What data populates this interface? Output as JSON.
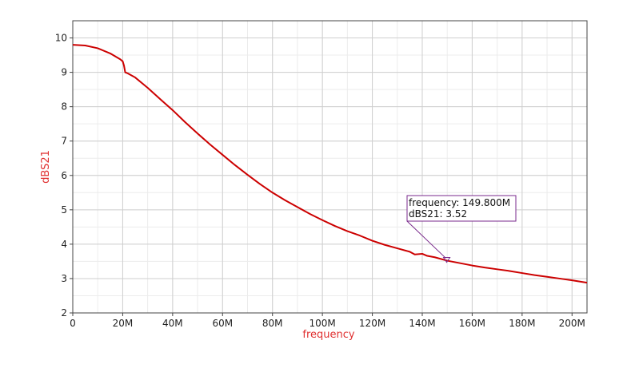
{
  "chart_data": {
    "type": "line",
    "xlabel": "frequency",
    "ylabel": "dBS21",
    "xlim": [
      0,
      206
    ],
    "ylim": [
      2,
      10.5
    ],
    "x_ticks": [
      0,
      20,
      40,
      60,
      80,
      100,
      120,
      140,
      160,
      180,
      200
    ],
    "x_tick_labels": [
      "0",
      "20M",
      "40M",
      "60M",
      "80M",
      "100M",
      "120M",
      "140M",
      "160M",
      "180M",
      "200M"
    ],
    "y_ticks": [
      2,
      3,
      4,
      5,
      6,
      7,
      8,
      9,
      10
    ],
    "y_tick_labels": [
      "2",
      "3",
      "4",
      "5",
      "6",
      "7",
      "8",
      "9",
      "10"
    ],
    "x_minor_step": 10,
    "y_minor_step": 0.5,
    "grid": true,
    "series": [
      {
        "color": "#cc0000",
        "x": [
          0,
          5,
          10,
          15,
          19,
          20,
          20.5,
          21,
          22,
          25,
          30,
          35,
          40,
          45,
          50,
          55,
          60,
          65,
          70,
          75,
          80,
          85,
          90,
          95,
          100,
          105,
          110,
          115,
          120,
          125,
          130,
          135,
          137,
          140,
          142,
          145,
          150,
          155,
          160,
          165,
          170,
          175,
          180,
          185,
          190,
          195,
          200,
          206
        ],
        "y": [
          9.8,
          9.78,
          9.7,
          9.55,
          9.38,
          9.32,
          9.2,
          9.0,
          8.97,
          8.85,
          8.55,
          8.22,
          7.9,
          7.55,
          7.22,
          6.9,
          6.6,
          6.3,
          6.02,
          5.75,
          5.5,
          5.28,
          5.08,
          4.88,
          4.7,
          4.53,
          4.38,
          4.25,
          4.1,
          3.98,
          3.88,
          3.78,
          3.7,
          3.72,
          3.66,
          3.62,
          3.52,
          3.45,
          3.38,
          3.32,
          3.27,
          3.22,
          3.16,
          3.1,
          3.05,
          3.0,
          2.95,
          2.88
        ]
      }
    ],
    "marker": {
      "x": 149.8,
      "y": 3.52,
      "lines": [
        "frequency: 149.800M",
        "dBS21: 3.52"
      ],
      "color": "#7a2a8c"
    }
  }
}
